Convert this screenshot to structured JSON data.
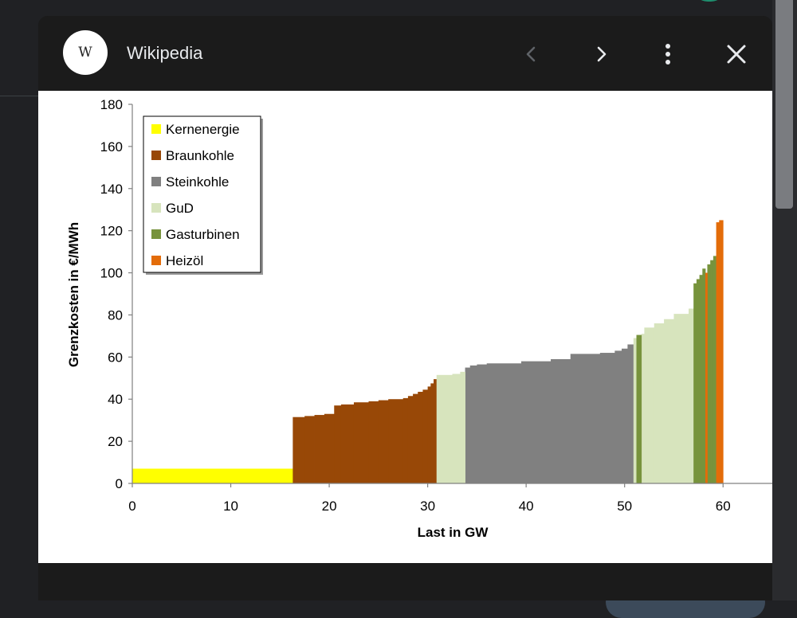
{
  "viewer": {
    "logo_letter": "W",
    "title": "Wikipedia",
    "icons": {
      "prev": "chevron-left-icon",
      "next": "chevron-right-icon",
      "more": "more-vert-icon",
      "close": "close-icon"
    }
  },
  "chart_data": {
    "type": "bar",
    "title": "",
    "xlabel": "Last in GW",
    "ylabel": "Grenzkosten in €/MWh",
    "xlim": [
      0,
      65
    ],
    "ylim": [
      0,
      180
    ],
    "xticks": [
      0,
      10,
      20,
      30,
      40,
      50,
      60
    ],
    "yticks": [
      0,
      20,
      40,
      60,
      80,
      100,
      120,
      140,
      160,
      180
    ],
    "grid": false,
    "legend_position": "top-left",
    "series": [
      {
        "name": "Kernenergie",
        "color": "#ffff00",
        "steps": [
          [
            0,
            16.3,
            7
          ]
        ]
      },
      {
        "name": "Braunkohle",
        "color": "#984807",
        "steps": [
          [
            16.3,
            17.5,
            31.5
          ],
          [
            17.5,
            18.5,
            32
          ],
          [
            18.5,
            19.5,
            32.5
          ],
          [
            19.5,
            20.5,
            33
          ],
          [
            20.5,
            21.2,
            37
          ],
          [
            21.2,
            22.5,
            37.5
          ],
          [
            22.5,
            24.0,
            38.5
          ],
          [
            24.0,
            25.0,
            39
          ],
          [
            25.0,
            26.0,
            39.5
          ],
          [
            26.0,
            27.5,
            40
          ],
          [
            27.5,
            28.0,
            40.5
          ],
          [
            28.0,
            28.5,
            41.5
          ],
          [
            28.5,
            29.0,
            42.5
          ],
          [
            29.0,
            29.5,
            43.5
          ],
          [
            29.5,
            30.0,
            44.5
          ],
          [
            30.0,
            30.3,
            46
          ],
          [
            30.3,
            30.6,
            47.5
          ],
          [
            30.6,
            30.9,
            49.5
          ]
        ]
      },
      {
        "name": "Steinkohle",
        "color": "#808080",
        "steps": [
          [
            33.8,
            34.3,
            55
          ],
          [
            34.3,
            35.0,
            56
          ],
          [
            35.0,
            36.0,
            56.5
          ],
          [
            36.0,
            39.5,
            57
          ],
          [
            39.5,
            42.5,
            58
          ],
          [
            42.5,
            44.5,
            59
          ],
          [
            44.5,
            47.5,
            61.5
          ],
          [
            47.5,
            49.0,
            62
          ],
          [
            49.0,
            49.7,
            63
          ],
          [
            49.7,
            50.3,
            64
          ],
          [
            50.3,
            50.9,
            66
          ]
        ]
      },
      {
        "name": "GuD",
        "color": "#d7e4bd",
        "steps": [
          [
            30.9,
            32.5,
            51.5
          ],
          [
            32.5,
            33.3,
            52
          ],
          [
            33.3,
            33.8,
            53
          ],
          [
            50.9,
            51.2,
            69
          ],
          [
            51.7,
            52.0,
            71
          ],
          [
            52.0,
            53.0,
            74
          ],
          [
            53.0,
            54.0,
            76
          ],
          [
            54.0,
            55.0,
            78
          ],
          [
            55.0,
            56.5,
            80.5
          ],
          [
            56.5,
            57.0,
            83
          ]
        ]
      },
      {
        "name": "Gasturbinen",
        "color": "#77933c",
        "steps": [
          [
            51.2,
            51.7,
            70.5
          ],
          [
            57.0,
            57.3,
            95
          ],
          [
            57.3,
            57.6,
            97
          ],
          [
            57.6,
            57.9,
            99
          ],
          [
            57.9,
            58.2,
            102
          ],
          [
            58.4,
            58.7,
            104
          ],
          [
            58.7,
            59.0,
            106
          ],
          [
            59.0,
            59.3,
            108
          ]
        ]
      },
      {
        "name": "Heizöl",
        "color": "#e36c09",
        "steps": [
          [
            58.2,
            58.4,
            100
          ],
          [
            59.3,
            59.6,
            124
          ],
          [
            59.6,
            60.0,
            125
          ]
        ]
      }
    ]
  }
}
